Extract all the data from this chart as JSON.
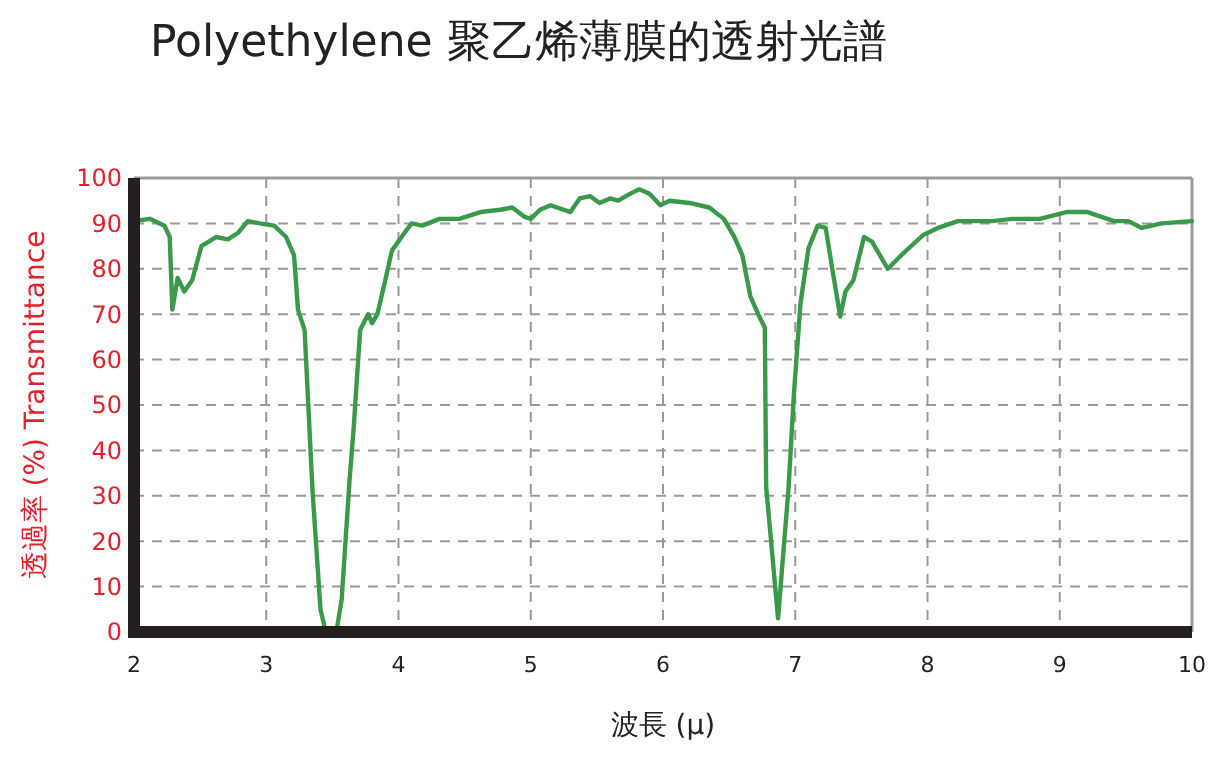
{
  "chart_data": {
    "type": "line",
    "title": "Polyethylene  聚乙烯薄膜的透射光譜",
    "xlabel": "波長 (μ)",
    "ylabel": "透過率 (%) Transmittance",
    "xlim": [
      2,
      10
    ],
    "xticks": [
      2,
      3,
      4,
      5,
      6,
      7,
      8,
      9,
      10
    ],
    "ylim": [
      0,
      100
    ],
    "yticks": [
      0,
      10,
      20,
      30,
      40,
      50,
      60,
      70,
      80,
      90,
      100
    ],
    "grid": true,
    "line_style": "solid",
    "marker": "none",
    "series": [
      {
        "color": "#3a9a4a",
        "x": [
          2.0,
          2.12,
          2.23,
          2.27,
          2.29,
          2.33,
          2.38,
          2.44,
          2.51,
          2.62,
          2.71,
          2.79,
          2.86,
          2.95,
          3.06,
          3.15,
          3.21,
          3.24,
          3.29,
          3.35,
          3.41,
          3.45,
          3.53,
          3.57,
          3.63,
          3.66,
          3.71,
          3.77,
          3.8,
          3.84,
          3.9,
          3.95,
          4.06,
          4.1,
          4.18,
          4.31,
          4.46,
          4.62,
          4.77,
          4.86,
          4.95,
          5.0,
          5.07,
          5.15,
          5.3,
          5.37,
          5.45,
          5.52,
          5.6,
          5.66,
          5.75,
          5.82,
          5.9,
          5.98,
          6.05,
          6.2,
          6.35,
          6.46,
          6.54,
          6.6,
          6.66,
          6.72,
          6.77,
          6.78,
          6.87,
          6.95,
          6.99,
          7.04,
          7.1,
          7.17,
          7.23,
          7.28,
          7.34,
          7.38,
          7.44,
          7.52,
          7.58,
          7.7,
          7.82,
          7.97,
          8.08,
          8.23,
          8.49,
          8.64,
          8.85,
          9.05,
          9.21,
          9.41,
          9.52,
          9.62,
          9.77,
          10.0
        ],
        "values": [
          90.5,
          91,
          89.5,
          87,
          71,
          78,
          75,
          77.5,
          85,
          87,
          86.5,
          88,
          90.5,
          90,
          89.5,
          87,
          83,
          71,
          66.5,
          31,
          5,
          0,
          0,
          7,
          33.5,
          44.5,
          66.5,
          70,
          68,
          70,
          77.5,
          84,
          88.5,
          90,
          89.5,
          91,
          91,
          92.5,
          93,
          93.5,
          91.5,
          91,
          93,
          94,
          92.5,
          95.5,
          96,
          94.5,
          95.5,
          95,
          96.5,
          97.5,
          96.5,
          94,
          95,
          94.5,
          93.5,
          91,
          87,
          83,
          74,
          70,
          67,
          32,
          3,
          32,
          52.5,
          72.5,
          84.5,
          89.5,
          89,
          80,
          69.5,
          75,
          77.5,
          87,
          86,
          80,
          83.5,
          87.5,
          89,
          90.5,
          90.5,
          91,
          91,
          92.5,
          92.5,
          90.5,
          90.5,
          89,
          90,
          90.5
        ]
      }
    ]
  }
}
